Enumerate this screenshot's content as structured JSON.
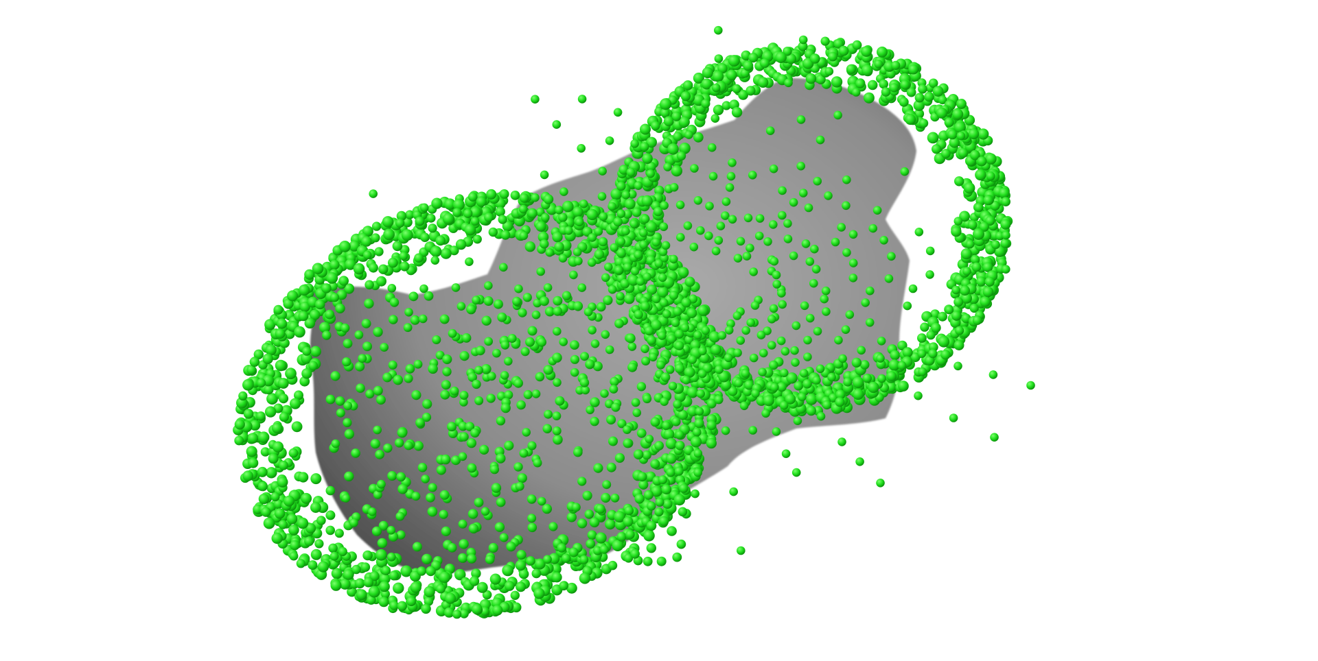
{
  "scene": {
    "background_color": "#ffffff",
    "surface": {
      "name": "molecular-surface",
      "color_light": "#a9a9a9",
      "color_mid": "#8c8c8c",
      "color_dark": "#4e4e4e"
    },
    "spheres": {
      "name": "probe-spheres",
      "color_light": "#7dff6e",
      "color_mid": "#22e01e",
      "color_dark": "#0a8f0a"
    }
  }
}
